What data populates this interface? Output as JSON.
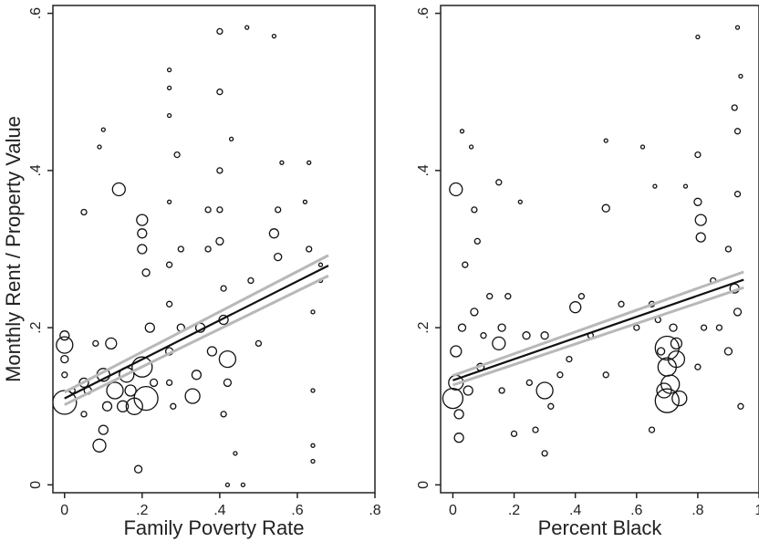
{
  "chart_data": [
    {
      "type": "scatter",
      "xlabel": "Family Poverty Rate",
      "ylabel": "Monthly Rent / Property Value",
      "xlim": [
        -0.03,
        0.8
      ],
      "ylim": [
        -0.01,
        0.61
      ],
      "xticks": [
        0,
        0.2,
        0.4,
        0.6,
        0.8
      ],
      "xtick_labels": [
        "0",
        ".2",
        ".4",
        ".6",
        ".8"
      ],
      "yticks": [
        0,
        0.2,
        0.4,
        0.6
      ],
      "ytick_labels": [
        "0",
        ".2",
        ".4",
        ".6"
      ],
      "grid": false,
      "marker": "hollow circle, size weighted",
      "colors": {
        "points": "#111111",
        "fit_line": "#111111",
        "ci_band": "#b8b8b8"
      },
      "fit_line": {
        "x": [
          0,
          0.68
        ],
        "y": [
          0.11,
          0.279
        ]
      },
      "ci_upper": {
        "x": [
          0,
          0.68
        ],
        "y": [
          0.118,
          0.292
        ]
      },
      "ci_lower": {
        "x": [
          0,
          0.68
        ],
        "y": [
          0.102,
          0.266
        ]
      },
      "points": [
        {
          "x": 0,
          "y": 0.105,
          "s": 13
        },
        {
          "x": 0,
          "y": 0.178,
          "s": 9
        },
        {
          "x": 0,
          "y": 0.19,
          "s": 5
        },
        {
          "x": 0,
          "y": 0.16,
          "s": 4
        },
        {
          "x": 0,
          "y": 0.14,
          "s": 3
        },
        {
          "x": 0.02,
          "y": 0.12,
          "s": 3
        },
        {
          "x": 0.05,
          "y": 0.347,
          "s": 3
        },
        {
          "x": 0.05,
          "y": 0.13,
          "s": 5
        },
        {
          "x": 0.05,
          "y": 0.09,
          "s": 3
        },
        {
          "x": 0.06,
          "y": 0.12,
          "s": 4
        },
        {
          "x": 0.08,
          "y": 0.18,
          "s": 3
        },
        {
          "x": 0.09,
          "y": 0.43,
          "s": 2
        },
        {
          "x": 0.1,
          "y": 0.452,
          "s": 2
        },
        {
          "x": 0.09,
          "y": 0.05,
          "s": 7
        },
        {
          "x": 0.1,
          "y": 0.07,
          "s": 5
        },
        {
          "x": 0.1,
          "y": 0.14,
          "s": 7
        },
        {
          "x": 0.11,
          "y": 0.1,
          "s": 5
        },
        {
          "x": 0.12,
          "y": 0.18,
          "s": 6
        },
        {
          "x": 0.13,
          "y": 0.12,
          "s": 9
        },
        {
          "x": 0.14,
          "y": 0.376,
          "s": 7
        },
        {
          "x": 0.15,
          "y": 0.1,
          "s": 6
        },
        {
          "x": 0.16,
          "y": 0.14,
          "s": 8
        },
        {
          "x": 0.17,
          "y": 0.12,
          "s": 6
        },
        {
          "x": 0.18,
          "y": 0.1,
          "s": 9
        },
        {
          "x": 0.19,
          "y": 0.02,
          "s": 4
        },
        {
          "x": 0.2,
          "y": 0.337,
          "s": 6
        },
        {
          "x": 0.2,
          "y": 0.32,
          "s": 5
        },
        {
          "x": 0.2,
          "y": 0.3,
          "s": 5
        },
        {
          "x": 0.2,
          "y": 0.15,
          "s": 11
        },
        {
          "x": 0.21,
          "y": 0.11,
          "s": 13
        },
        {
          "x": 0.21,
          "y": 0.27,
          "s": 4
        },
        {
          "x": 0.22,
          "y": 0.2,
          "s": 5
        },
        {
          "x": 0.23,
          "y": 0.13,
          "s": 4
        },
        {
          "x": 0.27,
          "y": 0.528,
          "s": 2
        },
        {
          "x": 0.27,
          "y": 0.505,
          "s": 2
        },
        {
          "x": 0.27,
          "y": 0.47,
          "s": 2
        },
        {
          "x": 0.27,
          "y": 0.36,
          "s": 2
        },
        {
          "x": 0.27,
          "y": 0.28,
          "s": 3
        },
        {
          "x": 0.27,
          "y": 0.23,
          "s": 3
        },
        {
          "x": 0.27,
          "y": 0.17,
          "s": 4
        },
        {
          "x": 0.27,
          "y": 0.13,
          "s": 3
        },
        {
          "x": 0.28,
          "y": 0.1,
          "s": 3
        },
        {
          "x": 0.29,
          "y": 0.42,
          "s": 3
        },
        {
          "x": 0.3,
          "y": 0.3,
          "s": 3
        },
        {
          "x": 0.3,
          "y": 0.2,
          "s": 4
        },
        {
          "x": 0.33,
          "y": 0.113,
          "s": 8
        },
        {
          "x": 0.34,
          "y": 0.14,
          "s": 5
        },
        {
          "x": 0.35,
          "y": 0.2,
          "s": 5
        },
        {
          "x": 0.37,
          "y": 0.35,
          "s": 3
        },
        {
          "x": 0.37,
          "y": 0.3,
          "s": 3
        },
        {
          "x": 0.38,
          "y": 0.17,
          "s": 5
        },
        {
          "x": 0.4,
          "y": 0.577,
          "s": 3
        },
        {
          "x": 0.4,
          "y": 0.5,
          "s": 3
        },
        {
          "x": 0.4,
          "y": 0.4,
          "s": 3
        },
        {
          "x": 0.4,
          "y": 0.35,
          "s": 3
        },
        {
          "x": 0.4,
          "y": 0.31,
          "s": 4
        },
        {
          "x": 0.41,
          "y": 0.25,
          "s": 3
        },
        {
          "x": 0.41,
          "y": 0.21,
          "s": 5
        },
        {
          "x": 0.42,
          "y": 0.16,
          "s": 9
        },
        {
          "x": 0.42,
          "y": 0.13,
          "s": 4
        },
        {
          "x": 0.41,
          "y": 0.09,
          "s": 3
        },
        {
          "x": 0.42,
          "y": 0.0,
          "s": 2
        },
        {
          "x": 0.43,
          "y": 0.44,
          "s": 2
        },
        {
          "x": 0.44,
          "y": 0.04,
          "s": 2
        },
        {
          "x": 0.46,
          "y": 0.0,
          "s": 2
        },
        {
          "x": 0.47,
          "y": 0.582,
          "s": 2
        },
        {
          "x": 0.48,
          "y": 0.26,
          "s": 3
        },
        {
          "x": 0.5,
          "y": 0.18,
          "s": 3
        },
        {
          "x": 0.54,
          "y": 0.571,
          "s": 2
        },
        {
          "x": 0.54,
          "y": 0.32,
          "s": 5
        },
        {
          "x": 0.55,
          "y": 0.29,
          "s": 4
        },
        {
          "x": 0.55,
          "y": 0.35,
          "s": 3
        },
        {
          "x": 0.56,
          "y": 0.41,
          "s": 2
        },
        {
          "x": 0.62,
          "y": 0.36,
          "s": 2
        },
        {
          "x": 0.63,
          "y": 0.41,
          "s": 2
        },
        {
          "x": 0.63,
          "y": 0.3,
          "s": 3
        },
        {
          "x": 0.64,
          "y": 0.22,
          "s": 2
        },
        {
          "x": 0.64,
          "y": 0.12,
          "s": 2
        },
        {
          "x": 0.64,
          "y": 0.05,
          "s": 2
        },
        {
          "x": 0.64,
          "y": 0.03,
          "s": 2
        },
        {
          "x": 0.66,
          "y": 0.26,
          "s": 2
        },
        {
          "x": 0.66,
          "y": 0.28,
          "s": 2
        }
      ]
    },
    {
      "type": "scatter",
      "xlabel": "Percent Black",
      "ylabel": "",
      "xlim": [
        -0.04,
        1.0
      ],
      "ylim": [
        -0.01,
        0.61
      ],
      "xticks": [
        0,
        0.2,
        0.4,
        0.6,
        0.8,
        1
      ],
      "xtick_labels": [
        "0",
        ".2",
        ".4",
        ".6",
        ".8",
        "1"
      ],
      "yticks": [
        0,
        0.2,
        0.4,
        0.6
      ],
      "ytick_labels": [
        "0",
        ".2",
        ".4",
        ".6"
      ],
      "grid": false,
      "marker": "hollow circle, size weighted",
      "colors": {
        "points": "#111111",
        "fit_line": "#111111",
        "ci_band": "#b8b8b8"
      },
      "fit_line": {
        "x": [
          0,
          0.95
        ],
        "y": [
          0.133,
          0.261
        ]
      },
      "ci_upper": {
        "x": [
          0,
          0.95
        ],
        "y": [
          0.139,
          0.271
        ]
      },
      "ci_lower": {
        "x": [
          0,
          0.95
        ],
        "y": [
          0.127,
          0.251
        ]
      },
      "points": [
        {
          "x": 0.01,
          "y": 0.376,
          "s": 7
        },
        {
          "x": 0,
          "y": 0.11,
          "s": 11
        },
        {
          "x": 0.01,
          "y": 0.13,
          "s": 8
        },
        {
          "x": 0.01,
          "y": 0.17,
          "s": 6
        },
        {
          "x": 0.02,
          "y": 0.06,
          "s": 5
        },
        {
          "x": 0.02,
          "y": 0.09,
          "s": 5
        },
        {
          "x": 0.03,
          "y": 0.2,
          "s": 4
        },
        {
          "x": 0.03,
          "y": 0.45,
          "s": 2
        },
        {
          "x": 0.04,
          "y": 0.28,
          "s": 3
        },
        {
          "x": 0.05,
          "y": 0.12,
          "s": 5
        },
        {
          "x": 0.06,
          "y": 0.43,
          "s": 2
        },
        {
          "x": 0.07,
          "y": 0.35,
          "s": 3
        },
        {
          "x": 0.07,
          "y": 0.22,
          "s": 4
        },
        {
          "x": 0.08,
          "y": 0.31,
          "s": 3
        },
        {
          "x": 0.09,
          "y": 0.15,
          "s": 4
        },
        {
          "x": 0.1,
          "y": 0.19,
          "s": 3
        },
        {
          "x": 0.12,
          "y": 0.24,
          "s": 3
        },
        {
          "x": 0.15,
          "y": 0.385,
          "s": 3
        },
        {
          "x": 0.15,
          "y": 0.18,
          "s": 7
        },
        {
          "x": 0.16,
          "y": 0.2,
          "s": 4
        },
        {
          "x": 0.16,
          "y": 0.12,
          "s": 3
        },
        {
          "x": 0.18,
          "y": 0.24,
          "s": 3
        },
        {
          "x": 0.2,
          "y": 0.065,
          "s": 3
        },
        {
          "x": 0.22,
          "y": 0.36,
          "s": 2
        },
        {
          "x": 0.24,
          "y": 0.19,
          "s": 4
        },
        {
          "x": 0.25,
          "y": 0.13,
          "s": 3
        },
        {
          "x": 0.27,
          "y": 0.07,
          "s": 3
        },
        {
          "x": 0.3,
          "y": 0.12,
          "s": 9
        },
        {
          "x": 0.3,
          "y": 0.19,
          "s": 4
        },
        {
          "x": 0.3,
          "y": 0.04,
          "s": 3
        },
        {
          "x": 0.32,
          "y": 0.1,
          "s": 3
        },
        {
          "x": 0.35,
          "y": 0.14,
          "s": 3
        },
        {
          "x": 0.38,
          "y": 0.16,
          "s": 3
        },
        {
          "x": 0.4,
          "y": 0.226,
          "s": 6
        },
        {
          "x": 0.42,
          "y": 0.24,
          "s": 3
        },
        {
          "x": 0.45,
          "y": 0.19,
          "s": 3
        },
        {
          "x": 0.5,
          "y": 0.438,
          "s": 2
        },
        {
          "x": 0.5,
          "y": 0.352,
          "s": 4
        },
        {
          "x": 0.5,
          "y": 0.14,
          "s": 3
        },
        {
          "x": 0.55,
          "y": 0.23,
          "s": 3
        },
        {
          "x": 0.6,
          "y": 0.2,
          "s": 3
        },
        {
          "x": 0.62,
          "y": 0.43,
          "s": 2
        },
        {
          "x": 0.65,
          "y": 0.23,
          "s": 3
        },
        {
          "x": 0.65,
          "y": 0.07,
          "s": 3
        },
        {
          "x": 0.66,
          "y": 0.38,
          "s": 2
        },
        {
          "x": 0.67,
          "y": 0.21,
          "s": 3
        },
        {
          "x": 0.68,
          "y": 0.17,
          "s": 4
        },
        {
          "x": 0.69,
          "y": 0.12,
          "s": 8
        },
        {
          "x": 0.7,
          "y": 0.174,
          "s": 13
        },
        {
          "x": 0.7,
          "y": 0.15,
          "s": 10
        },
        {
          "x": 0.7,
          "y": 0.107,
          "s": 13
        },
        {
          "x": 0.71,
          "y": 0.128,
          "s": 10
        },
        {
          "x": 0.72,
          "y": 0.2,
          "s": 4
        },
        {
          "x": 0.73,
          "y": 0.16,
          "s": 9
        },
        {
          "x": 0.74,
          "y": 0.11,
          "s": 8
        },
        {
          "x": 0.73,
          "y": 0.18,
          "s": 6
        },
        {
          "x": 0.76,
          "y": 0.38,
          "s": 2
        },
        {
          "x": 0.8,
          "y": 0.42,
          "s": 3
        },
        {
          "x": 0.8,
          "y": 0.36,
          "s": 4
        },
        {
          "x": 0.81,
          "y": 0.337,
          "s": 6
        },
        {
          "x": 0.81,
          "y": 0.315,
          "s": 5
        },
        {
          "x": 0.82,
          "y": 0.2,
          "s": 3
        },
        {
          "x": 0.8,
          "y": 0.15,
          "s": 3
        },
        {
          "x": 0.8,
          "y": 0.57,
          "s": 2
        },
        {
          "x": 0.85,
          "y": 0.26,
          "s": 3
        },
        {
          "x": 0.87,
          "y": 0.2,
          "s": 3
        },
        {
          "x": 0.9,
          "y": 0.3,
          "s": 3
        },
        {
          "x": 0.9,
          "y": 0.17,
          "s": 4
        },
        {
          "x": 0.92,
          "y": 0.48,
          "s": 3
        },
        {
          "x": 0.92,
          "y": 0.25,
          "s": 5
        },
        {
          "x": 0.93,
          "y": 0.582,
          "s": 2
        },
        {
          "x": 0.93,
          "y": 0.45,
          "s": 3
        },
        {
          "x": 0.93,
          "y": 0.37,
          "s": 3
        },
        {
          "x": 0.93,
          "y": 0.22,
          "s": 4
        },
        {
          "x": 0.94,
          "y": 0.1,
          "s": 3
        },
        {
          "x": 0.94,
          "y": 0.52,
          "s": 2
        }
      ]
    }
  ]
}
